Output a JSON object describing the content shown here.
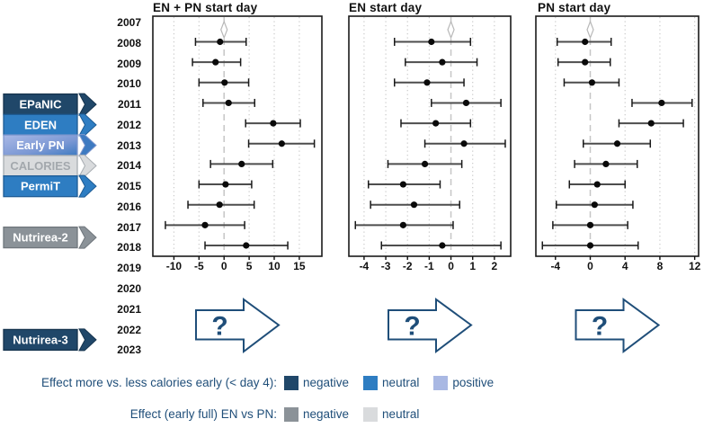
{
  "question_arrow_label": "?",
  "colors": {
    "dark_navy": "#204769",
    "blue": "#2e7dc2",
    "periwinkle": "#a9b8e3",
    "gray": "#8b9298",
    "light_gray": "#d9dbdd",
    "legend_text": "#1f4e79",
    "arrow_outline": "#1f4e79",
    "axis_text": "#111111",
    "grid_line": "#c9c9c9",
    "reference_line": "#c6c6c6",
    "ci_line": "#4d4d4d",
    "point": "#0a0a0a",
    "diamond_outline": "#b8b8b8"
  },
  "timeline": {
    "years": [
      "2007",
      "2008",
      "2009",
      "2010",
      "2011",
      "2012",
      "2013",
      "2014",
      "2015",
      "2016",
      "2017",
      "2018",
      "2019",
      "2020",
      "2021",
      "2022",
      "2023"
    ]
  },
  "trials": [
    {
      "label": "EPaNIC",
      "timeline_position": "2011",
      "category": "more vs. less calories early: negative",
      "fill": "#204769",
      "border": "#16344e",
      "text_color": "#ffffff"
    },
    {
      "label": "EDEN",
      "timeline_position": "2012",
      "category": "more vs. less calories early: neutral",
      "fill": "#2e7dc2",
      "border": "#1e5c95",
      "text_color": "#ffffff"
    },
    {
      "label": "Early PN",
      "timeline_position": "2013",
      "category": "more vs. less calories early: positive",
      "fill": "gradient:#aab9e6,#3d7ac1",
      "border": "#7f97cd",
      "text_color": "#ffffff"
    },
    {
      "label": "CALORIES",
      "timeline_position": "2014",
      "category": "EN vs PN: neutral",
      "fill": "#d9dbdd",
      "border": "#a8adb2",
      "text_color": "#a3a8ad"
    },
    {
      "label": "PermiT",
      "timeline_position": "2015",
      "category": "more vs. less calories early: neutral",
      "fill": "#2e7dc2",
      "border": "#1e5c95",
      "text_color": "#ffffff"
    },
    {
      "label": "Nutrirea-2",
      "timeline_position": "2017-2018",
      "category": "EN vs PN: negative",
      "fill": "#8b9298",
      "border": "#6f767c",
      "text_color": "#ffffff"
    },
    {
      "label": "Nutrirea-3",
      "timeline_position": "2022-2023",
      "category": "more vs. less calories early: negative",
      "fill": "#204769",
      "border": "#16344e",
      "text_color": "#ffffff"
    }
  ],
  "legend": [
    {
      "label": "Effect more vs. less calories early (< day 4):",
      "items": [
        {
          "label": "negative",
          "color": "#204769"
        },
        {
          "label": "neutral",
          "color": "#2e7dc2"
        },
        {
          "label": "positive",
          "color": "#a9b8e3"
        }
      ]
    },
    {
      "label": "Effect (early full) EN vs PN:",
      "items": [
        {
          "label": "negative",
          "color": "#8b9298"
        },
        {
          "label": "neutral",
          "color": "#d9dbdd"
        }
      ]
    }
  ],
  "chart_data": [
    {
      "type": "scatter",
      "subtype": "forest-plot",
      "title": "EN + PN start day",
      "xlim": [
        -14.2,
        19.5
      ],
      "x_ticks": [
        -10,
        -5,
        0,
        5,
        10,
        15
      ],
      "reference_line": 0,
      "baseline_marker": {
        "year": 2007,
        "x": 0,
        "shape": "open-diamond"
      },
      "grid": true,
      "rows": [
        {
          "year": 2008,
          "x": -0.8,
          "lo": -5.7,
          "hi": 4.4
        },
        {
          "year": 2009,
          "x": -1.7,
          "lo": -6.3,
          "hi": 3.3
        },
        {
          "year": 2010,
          "x": 0.1,
          "lo": -5.0,
          "hi": 4.9
        },
        {
          "year": 2011,
          "x": 0.9,
          "lo": -4.2,
          "hi": 6.1
        },
        {
          "year": 2012,
          "x": 9.8,
          "lo": 4.3,
          "hi": 15.2
        },
        {
          "year": 2013,
          "x": 11.5,
          "lo": 4.9,
          "hi": 18.0
        },
        {
          "year": 2014,
          "x": 3.5,
          "lo": -2.7,
          "hi": 9.7
        },
        {
          "year": 2015,
          "x": 0.3,
          "lo": -5.0,
          "hi": 5.5
        },
        {
          "year": 2016,
          "x": -0.9,
          "lo": -7.2,
          "hi": 6.0
        },
        {
          "year": 2017,
          "x": -3.8,
          "lo": -11.7,
          "hi": 4.1
        },
        {
          "year": 2018,
          "x": 4.4,
          "lo": -3.8,
          "hi": 12.7
        }
      ]
    },
    {
      "type": "scatter",
      "subtype": "forest-plot",
      "title": "EN start day",
      "xlim": [
        -4.7,
        2.75
      ],
      "x_ticks": [
        -4,
        -3,
        -2,
        -1,
        0,
        1,
        2
      ],
      "reference_line": 0,
      "baseline_marker": {
        "year": 2007,
        "x": 0,
        "shape": "open-diamond"
      },
      "grid": true,
      "rows": [
        {
          "year": 2008,
          "x": -0.9,
          "lo": -2.6,
          "hi": 0.9
        },
        {
          "year": 2009,
          "x": -0.4,
          "lo": -2.1,
          "hi": 1.2
        },
        {
          "year": 2010,
          "x": -1.1,
          "lo": -2.6,
          "hi": 0.6
        },
        {
          "year": 2011,
          "x": 0.7,
          "lo": -0.9,
          "hi": 2.3
        },
        {
          "year": 2012,
          "x": -0.7,
          "lo": -2.3,
          "hi": 0.9
        },
        {
          "year": 2013,
          "x": 0.6,
          "lo": -1.2,
          "hi": 2.5
        },
        {
          "year": 2014,
          "x": -1.2,
          "lo": -2.9,
          "hi": 0.5
        },
        {
          "year": 2015,
          "x": -2.2,
          "lo": -3.8,
          "hi": -0.5
        },
        {
          "year": 2016,
          "x": -1.7,
          "lo": -3.7,
          "hi": 0.4
        },
        {
          "year": 2017,
          "x": -2.2,
          "lo": -4.4,
          "hi": 0.1
        },
        {
          "year": 2018,
          "x": -0.4,
          "lo": -3.2,
          "hi": 2.3
        }
      ]
    },
    {
      "type": "scatter",
      "subtype": "forest-plot",
      "title": "PN start day",
      "xlim": [
        -6.25,
        12.45
      ],
      "x_ticks": [
        -4,
        0,
        4,
        8,
        12
      ],
      "reference_line": 0,
      "baseline_marker": {
        "year": 2007,
        "x": 0,
        "shape": "open-diamond"
      },
      "grid": true,
      "rows": [
        {
          "year": 2008,
          "x": -0.6,
          "lo": -3.8,
          "hi": 2.4
        },
        {
          "year": 2009,
          "x": -0.6,
          "lo": -3.7,
          "hi": 2.3
        },
        {
          "year": 2010,
          "x": 0.2,
          "lo": -3.0,
          "hi": 3.3
        },
        {
          "year": 2011,
          "x": 8.2,
          "lo": 4.8,
          "hi": 11.7
        },
        {
          "year": 2012,
          "x": 7.0,
          "lo": 3.3,
          "hi": 10.7
        },
        {
          "year": 2013,
          "x": 3.1,
          "lo": -0.8,
          "hi": 6.9
        },
        {
          "year": 2014,
          "x": 1.8,
          "lo": -1.8,
          "hi": 5.4
        },
        {
          "year": 2015,
          "x": 0.8,
          "lo": -2.4,
          "hi": 4.0
        },
        {
          "year": 2016,
          "x": 0.5,
          "lo": -3.9,
          "hi": 4.9
        },
        {
          "year": 2017,
          "x": 0.0,
          "lo": -4.3,
          "hi": 4.3
        },
        {
          "year": 2018,
          "x": 0.0,
          "lo": -5.5,
          "hi": 5.5
        }
      ]
    }
  ]
}
